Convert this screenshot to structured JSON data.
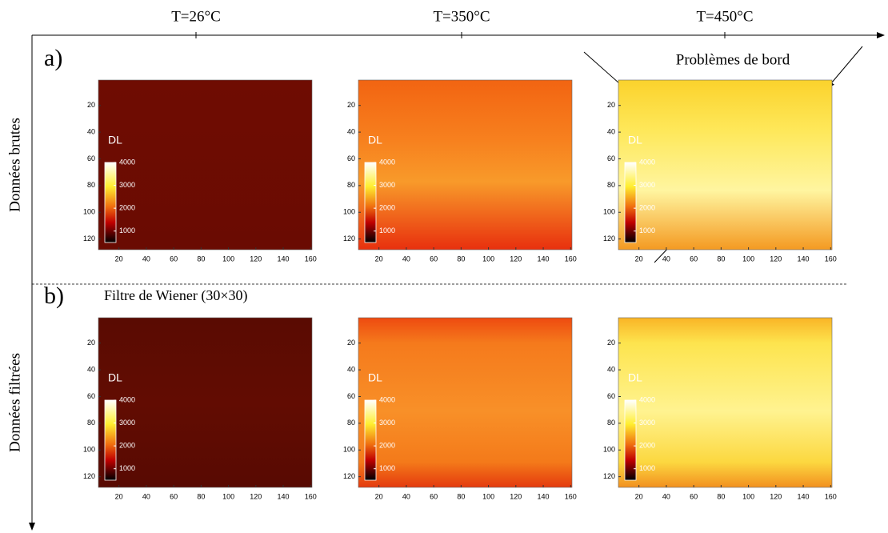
{
  "columns": [
    "T=26°C",
    "T=350°C",
    "T=450°C"
  ],
  "rows": [
    {
      "panel_label": "a)",
      "label": "Données brutes"
    },
    {
      "panel_label": "b)",
      "label": "Données filtrées",
      "note": "Filtre de Wiener (30×30)"
    }
  ],
  "annotation": "Problèmes de bord",
  "axes": {
    "xlim": [
      5,
      161
    ],
    "xticks": [
      20,
      40,
      60,
      80,
      100,
      120,
      140,
      160
    ],
    "ylim": [
      1,
      128
    ],
    "yticks": [
      20,
      40,
      60,
      80,
      100,
      120
    ]
  },
  "colorbar": {
    "label": "DL",
    "clim": [
      500,
      4000
    ],
    "ticks": [
      1000,
      2000,
      3000,
      4000
    ]
  }
}
